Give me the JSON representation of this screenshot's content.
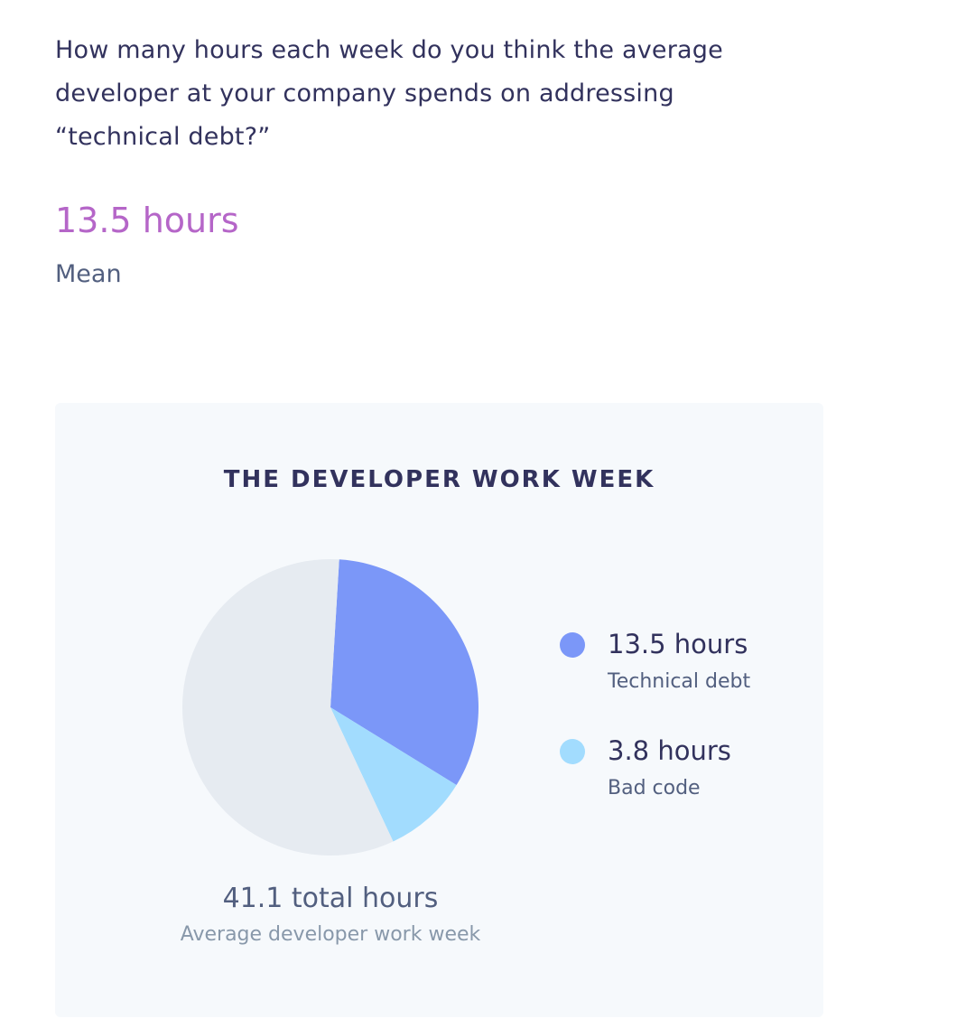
{
  "question": "How many hours each week do you think the average developer at your company spends on addressing “technical debt?”",
  "stat": {
    "value": "13.5 hours",
    "label": "Mean"
  },
  "card": {
    "total_value": "41.1 total hours",
    "total_label": "Average developer work week"
  },
  "legend": [
    {
      "value": "13.5 hours",
      "label": "Technical debt"
    },
    {
      "value": "3.8 hours",
      "label": "Bad code"
    }
  ],
  "colors": {
    "technical_debt": "#7b97f8",
    "bad_code": "#a2dcfe",
    "remainder": "#e6ebf1",
    "accent": "#b566c8"
  },
  "chart_data": {
    "type": "pie",
    "title": "THE DEVELOPER WORK WEEK",
    "total": 41.1,
    "start_angle_deg": -86.6,
    "slices": [
      {
        "name": "Technical debt",
        "value": 13.5,
        "color": "#7b97f8"
      },
      {
        "name": "Bad code",
        "value": 3.8,
        "color": "#a2dcfe"
      },
      {
        "name": "",
        "value": 23.8,
        "color": "#e6ebf1"
      }
    ]
  }
}
